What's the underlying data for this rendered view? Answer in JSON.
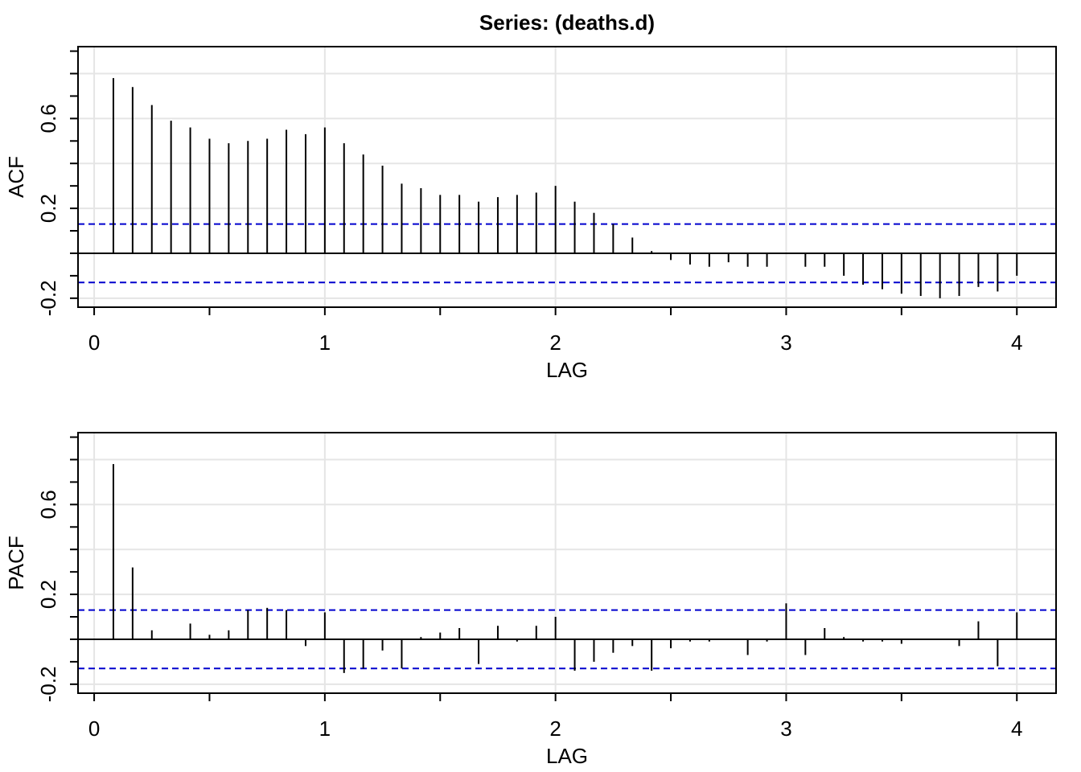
{
  "chart_data": [
    {
      "type": "acf",
      "title": "Series:  (deaths.d)",
      "ylabel": "ACF",
      "xlabel": "LAG",
      "x": [
        0.0833,
        0.1667,
        0.25,
        0.3333,
        0.4167,
        0.5,
        0.5833,
        0.6667,
        0.75,
        0.8333,
        0.9167,
        1,
        1.0833,
        1.1667,
        1.25,
        1.3333,
        1.4167,
        1.5,
        1.5833,
        1.6667,
        1.75,
        1.8333,
        1.9167,
        2,
        2.0833,
        2.1667,
        2.25,
        2.3333,
        2.4167,
        2.5,
        2.5833,
        2.6667,
        2.75,
        2.8333,
        2.9167,
        3,
        3.0833,
        3.1667,
        3.25,
        3.3333,
        3.4167,
        3.5,
        3.5833,
        3.6667,
        3.75,
        3.8333,
        3.9167,
        4
      ],
      "values": [
        0.78,
        0.74,
        0.66,
        0.59,
        0.56,
        0.51,
        0.49,
        0.5,
        0.51,
        0.55,
        0.53,
        0.56,
        0.49,
        0.44,
        0.39,
        0.31,
        0.29,
        0.26,
        0.26,
        0.23,
        0.25,
        0.26,
        0.27,
        0.3,
        0.23,
        0.18,
        0.13,
        0.07,
        0.01,
        -0.03,
        -0.05,
        -0.06,
        -0.04,
        -0.06,
        -0.06,
        0.0,
        -0.06,
        -0.06,
        -0.1,
        -0.14,
        -0.16,
        -0.18,
        -0.19,
        -0.2,
        -0.19,
        -0.15,
        -0.17,
        -0.1
      ],
      "color": "#000000",
      "ci": [
        0.13,
        -0.13
      ],
      "ci_color": "#0000cd",
      "xlim": [
        -0.07,
        4.17
      ],
      "ylim": [
        -0.24,
        0.92
      ],
      "xticks": [
        0,
        1,
        2,
        3,
        4
      ],
      "xminor": [
        0,
        0.5,
        1,
        1.5,
        2,
        2.5,
        3,
        3.5,
        4
      ],
      "yticks": [
        -0.2,
        0.2,
        0.6
      ],
      "yminor": [
        -0.2,
        -0.1,
        0,
        0.1,
        0.2,
        0.3,
        0.4,
        0.5,
        0.6,
        0.7,
        0.8,
        0.9
      ],
      "ygrid": [
        -0.2,
        0.2,
        0.4,
        0.6,
        0.8
      ],
      "grid": true
    },
    {
      "type": "acf",
      "ylabel": "PACF",
      "xlabel": "LAG",
      "x": [
        0.0833,
        0.1667,
        0.25,
        0.3333,
        0.4167,
        0.5,
        0.5833,
        0.6667,
        0.75,
        0.8333,
        0.9167,
        1,
        1.0833,
        1.1667,
        1.25,
        1.3333,
        1.4167,
        1.5,
        1.5833,
        1.6667,
        1.75,
        1.8333,
        1.9167,
        2,
        2.0833,
        2.1667,
        2.25,
        2.3333,
        2.4167,
        2.5,
        2.5833,
        2.6667,
        2.75,
        2.8333,
        2.9167,
        3,
        3.0833,
        3.1667,
        3.25,
        3.3333,
        3.4167,
        3.5,
        3.5833,
        3.6667,
        3.75,
        3.8333,
        3.9167,
        4
      ],
      "values": [
        0.78,
        0.32,
        0.04,
        0.0,
        0.07,
        0.02,
        0.04,
        0.13,
        0.14,
        0.13,
        -0.03,
        0.12,
        -0.15,
        -0.13,
        -0.05,
        -0.13,
        0.01,
        0.03,
        0.05,
        -0.11,
        0.06,
        -0.01,
        0.06,
        0.1,
        -0.14,
        -0.1,
        -0.06,
        -0.03,
        -0.14,
        -0.04,
        -0.01,
        -0.01,
        0.0,
        -0.07,
        -0.01,
        0.16,
        -0.07,
        0.05,
        0.01,
        -0.01,
        -0.01,
        -0.02,
        0.0,
        0.0,
        -0.03,
        0.08,
        -0.12,
        0.12
      ],
      "color": "#000000",
      "ci": [
        0.13,
        -0.13
      ],
      "ci_color": "#0000cd",
      "xlim": [
        -0.07,
        4.17
      ],
      "ylim": [
        -0.24,
        0.92
      ],
      "xticks": [
        0,
        1,
        2,
        3,
        4
      ],
      "xminor": [
        0,
        0.5,
        1,
        1.5,
        2,
        2.5,
        3,
        3.5,
        4
      ],
      "yticks": [
        -0.2,
        0.2,
        0.6
      ],
      "yminor": [
        -0.2,
        -0.1,
        0,
        0.1,
        0.2,
        0.3,
        0.4,
        0.5,
        0.6,
        0.7,
        0.8,
        0.9
      ],
      "ygrid": [
        -0.2,
        0.2,
        0.4,
        0.6,
        0.8
      ],
      "grid": true
    }
  ]
}
